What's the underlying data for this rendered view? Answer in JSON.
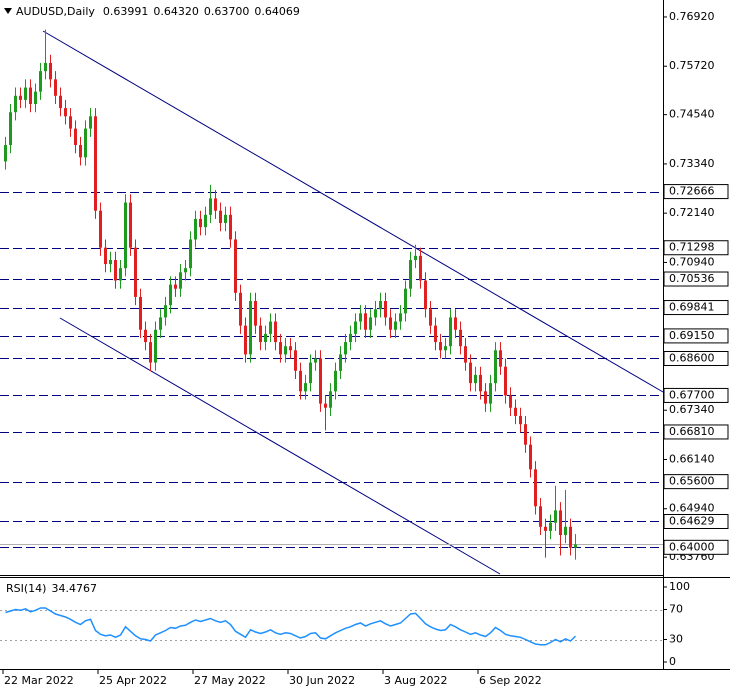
{
  "chart_data": [
    {
      "type": "candlestick",
      "title": "AUDUSD,Daily",
      "ohlc_text": [
        "0.63991",
        "0.64320",
        "0.63700",
        "0.64069"
      ],
      "up_color": "#1e9a1e",
      "down_color": "#e02020",
      "level_color": "#000080",
      "ylim": [
        0.6335,
        0.7726
      ],
      "yticks": [
        {
          "value": 0.7692,
          "label": "0.76920"
        },
        {
          "value": 0.7572,
          "label": "0.75720"
        },
        {
          "value": 0.7454,
          "label": "0.74540"
        },
        {
          "value": 0.7334,
          "label": "0.73340"
        },
        {
          "value": 0.7214,
          "label": "0.72140"
        },
        {
          "value": 0.7094,
          "label": "0.70940"
        },
        {
          "value": 0.6734,
          "label": "0.67340"
        },
        {
          "value": 0.6614,
          "label": "0.66140"
        },
        {
          "value": 0.6494,
          "label": "0.64940"
        },
        {
          "value": 0.6376,
          "label": "0.63760"
        }
      ],
      "levels": [
        {
          "value": 0.72666,
          "label": "0.72666"
        },
        {
          "value": 0.71298,
          "label": "0.71298"
        },
        {
          "value": 0.70536,
          "label": "0.70536"
        },
        {
          "value": 0.69841,
          "label": "0.69841"
        },
        {
          "value": 0.6915,
          "label": "0.69150"
        },
        {
          "value": 0.686,
          "label": "0.68600"
        },
        {
          "value": 0.677,
          "label": "0.67700"
        },
        {
          "value": 0.6681,
          "label": "0.66810"
        },
        {
          "value": 0.656,
          "label": "0.65600"
        },
        {
          "value": 0.64629,
          "label": "0.64629"
        },
        {
          "value": 0.64,
          "label": "0.64000"
        }
      ],
      "categories": [
        "22 Mar 2022",
        null,
        null,
        null,
        null,
        null,
        null,
        null,
        null,
        null,
        null,
        null,
        null,
        null,
        null,
        null,
        null,
        null,
        null,
        "25 Apr 2022",
        null,
        null,
        null,
        null,
        null,
        null,
        null,
        null,
        null,
        null,
        null,
        null,
        null,
        null,
        null,
        null,
        null,
        null,
        "27 May 2022",
        null,
        null,
        null,
        null,
        null,
        null,
        null,
        null,
        null,
        null,
        null,
        null,
        null,
        null,
        null,
        null,
        null,
        null,
        "30 Jun 2022",
        null,
        null,
        null,
        null,
        null,
        null,
        null,
        null,
        null,
        null,
        null,
        null,
        null,
        null,
        null,
        null,
        null,
        null,
        "3 Aug 2022",
        null,
        null,
        null,
        null,
        null,
        null,
        null,
        null,
        null,
        null,
        null,
        null,
        null,
        null,
        null,
        null,
        null,
        null,
        "6 Sep 2022",
        null,
        null,
        null,
        null,
        null,
        null,
        null,
        null,
        null,
        null,
        null,
        null,
        null,
        null,
        null,
        null,
        null,
        null,
        null
      ],
      "open": [
        0.734,
        0.738,
        0.746,
        0.75,
        0.749,
        0.752,
        0.748,
        0.751,
        0.756,
        0.758,
        0.754,
        0.75,
        0.747,
        0.745,
        0.742,
        0.738,
        0.735,
        0.742,
        0.745,
        0.722,
        0.713,
        0.709,
        0.71,
        0.705,
        0.708,
        0.724,
        0.713,
        0.701,
        0.693,
        0.69,
        0.685,
        0.693,
        0.696,
        0.699,
        0.704,
        0.703,
        0.707,
        0.708,
        0.715,
        0.72,
        0.718,
        0.721,
        0.725,
        0.722,
        0.719,
        0.721,
        0.715,
        0.702,
        0.694,
        0.687,
        0.7,
        0.694,
        0.69,
        0.692,
        0.695,
        0.69,
        0.687,
        0.689,
        0.688,
        0.683,
        0.678,
        0.68,
        0.685,
        0.686,
        0.675,
        0.674,
        0.678,
        0.683,
        0.687,
        0.69,
        0.692,
        0.695,
        0.697,
        0.693,
        0.696,
        0.698,
        0.7,
        0.696,
        0.693,
        0.695,
        0.697,
        0.703,
        0.71,
        0.711,
        0.705,
        0.698,
        0.694,
        0.69,
        0.688,
        0.689,
        0.696,
        0.693,
        0.689,
        0.685,
        0.68,
        0.682,
        0.678,
        0.675,
        0.68,
        0.688,
        0.684,
        0.677,
        0.674,
        0.672,
        0.67,
        0.665,
        0.659,
        0.65,
        0.645,
        0.644,
        0.646,
        0.649,
        0.643,
        0.645,
        0.63991
      ],
      "high": [
        0.74,
        0.748,
        0.752,
        0.752,
        0.754,
        0.754,
        0.753,
        0.758,
        0.7661,
        0.76,
        0.756,
        0.752,
        0.749,
        0.747,
        0.744,
        0.74,
        0.744,
        0.747,
        0.747,
        0.724,
        0.715,
        0.712,
        0.712,
        0.71,
        0.726,
        0.726,
        0.715,
        0.703,
        0.695,
        0.692,
        0.695,
        0.698,
        0.701,
        0.706,
        0.706,
        0.709,
        0.71,
        0.717,
        0.722,
        0.722,
        0.723,
        0.7283,
        0.727,
        0.724,
        0.723,
        0.723,
        0.717,
        0.704,
        0.696,
        0.702,
        0.702,
        0.696,
        0.694,
        0.697,
        0.697,
        0.692,
        0.691,
        0.691,
        0.69,
        0.685,
        0.682,
        0.687,
        0.688,
        0.688,
        0.677,
        0.68,
        0.685,
        0.689,
        0.692,
        0.694,
        0.697,
        0.699,
        0.699,
        0.698,
        0.7,
        0.702,
        0.702,
        0.698,
        0.697,
        0.699,
        0.705,
        0.712,
        0.7137,
        0.713,
        0.707,
        0.7,
        0.696,
        0.692,
        0.691,
        0.698,
        0.698,
        0.695,
        0.691,
        0.687,
        0.684,
        0.684,
        0.68,
        0.682,
        0.69,
        0.69,
        0.686,
        0.679,
        0.676,
        0.674,
        0.672,
        0.667,
        0.661,
        0.652,
        0.647,
        0.648,
        0.655,
        0.651,
        0.654,
        0.647,
        0.6432
      ],
      "low": [
        0.732,
        0.736,
        0.744,
        0.747,
        0.747,
        0.746,
        0.746,
        0.749,
        0.754,
        0.752,
        0.748,
        0.745,
        0.743,
        0.74,
        0.736,
        0.733,
        0.733,
        0.74,
        0.72,
        0.711,
        0.707,
        0.707,
        0.703,
        0.703,
        0.706,
        0.711,
        0.699,
        0.691,
        0.688,
        0.6829,
        0.683,
        0.691,
        0.694,
        0.697,
        0.701,
        0.701,
        0.705,
        0.706,
        0.713,
        0.716,
        0.716,
        0.719,
        0.72,
        0.717,
        0.717,
        0.713,
        0.7,
        0.692,
        0.685,
        0.685,
        0.692,
        0.688,
        0.688,
        0.69,
        0.688,
        0.685,
        0.685,
        0.686,
        0.681,
        0.676,
        0.676,
        0.678,
        0.683,
        0.673,
        0.6685,
        0.672,
        0.676,
        0.681,
        0.685,
        0.688,
        0.69,
        0.693,
        0.691,
        0.691,
        0.694,
        0.696,
        0.694,
        0.691,
        0.691,
        0.693,
        0.695,
        0.701,
        0.708,
        0.703,
        0.696,
        0.692,
        0.688,
        0.686,
        0.686,
        0.687,
        0.691,
        0.687,
        0.683,
        0.678,
        0.678,
        0.676,
        0.673,
        0.673,
        0.678,
        0.682,
        0.675,
        0.672,
        0.67,
        0.668,
        0.663,
        0.657,
        0.648,
        0.643,
        0.6375,
        0.642,
        0.644,
        0.638,
        0.641,
        0.638,
        0.637
      ],
      "close": [
        0.738,
        0.746,
        0.75,
        0.749,
        0.752,
        0.748,
        0.751,
        0.756,
        0.758,
        0.754,
        0.75,
        0.747,
        0.745,
        0.742,
        0.738,
        0.735,
        0.742,
        0.745,
        0.722,
        0.713,
        0.709,
        0.71,
        0.705,
        0.708,
        0.724,
        0.713,
        0.701,
        0.693,
        0.69,
        0.685,
        0.693,
        0.696,
        0.699,
        0.704,
        0.703,
        0.707,
        0.708,
        0.715,
        0.72,
        0.718,
        0.721,
        0.725,
        0.722,
        0.719,
        0.721,
        0.715,
        0.702,
        0.694,
        0.687,
        0.7,
        0.694,
        0.69,
        0.692,
        0.695,
        0.69,
        0.687,
        0.689,
        0.688,
        0.683,
        0.678,
        0.68,
        0.685,
        0.686,
        0.675,
        0.674,
        0.678,
        0.683,
        0.687,
        0.69,
        0.692,
        0.695,
        0.697,
        0.693,
        0.696,
        0.698,
        0.7,
        0.696,
        0.693,
        0.695,
        0.697,
        0.703,
        0.71,
        0.711,
        0.705,
        0.698,
        0.694,
        0.69,
        0.688,
        0.689,
        0.696,
        0.693,
        0.689,
        0.685,
        0.68,
        0.682,
        0.678,
        0.675,
        0.68,
        0.688,
        0.684,
        0.677,
        0.674,
        0.672,
        0.67,
        0.665,
        0.659,
        0.65,
        0.645,
        0.644,
        0.646,
        0.649,
        0.643,
        0.645,
        0.63991,
        0.64069
      ]
    },
    {
      "type": "line",
      "title": "RSI(14)",
      "color": "#1e90ff",
      "ylim": [
        -8,
        112
      ],
      "yticks": [
        100,
        70,
        30,
        0
      ],
      "levels": [
        70,
        30
      ],
      "values": [
        66,
        68,
        70,
        69,
        71,
        67,
        69,
        72,
        72,
        68,
        64,
        62,
        60,
        57,
        53,
        50,
        55,
        57,
        42,
        37,
        35,
        36,
        33,
        36,
        47,
        41,
        35,
        31,
        30,
        28,
        36,
        39,
        42,
        46,
        45,
        48,
        49,
        53,
        56,
        54,
        56,
        58,
        55,
        53,
        55,
        50,
        41,
        37,
        33,
        43,
        40,
        38,
        40,
        43,
        39,
        37,
        39,
        38,
        35,
        32,
        34,
        38,
        39,
        32,
        31,
        35,
        39,
        42,
        45,
        47,
        50,
        52,
        48,
        51,
        53,
        55,
        51,
        48,
        50,
        52,
        58,
        64,
        65,
        58,
        51,
        47,
        44,
        42,
        43,
        50,
        47,
        43,
        40,
        37,
        39,
        36,
        34,
        39,
        46,
        42,
        37,
        35,
        34,
        33,
        30,
        27,
        24,
        23,
        23,
        26,
        30,
        27,
        31,
        28,
        34.4767
      ]
    }
  ]
}
